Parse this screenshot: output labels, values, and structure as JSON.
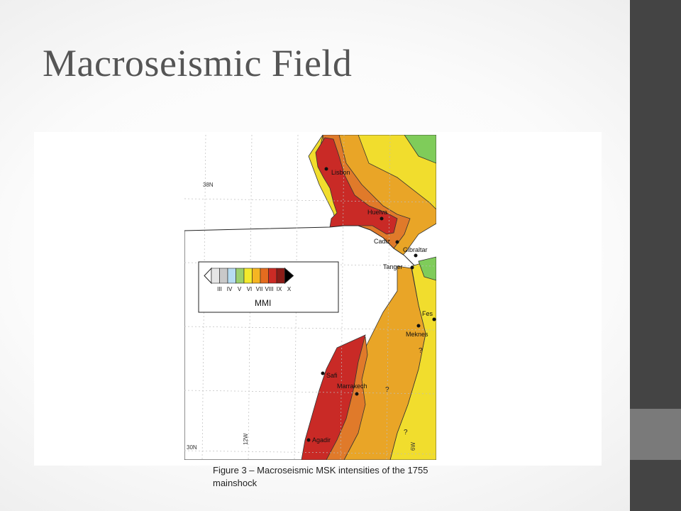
{
  "slide": {
    "title": "Macroseismic Field"
  },
  "figure": {
    "caption": "Figure 3 – Macroseismic MSK intensities of the 1755 mainshock",
    "latitude_labels": [
      "38N",
      "30N"
    ],
    "longitude_labels": [
      "12W",
      "6W"
    ],
    "cities": [
      "Lisbon",
      "Huelva",
      "Cadiz",
      "Gibraltar",
      "Tanger",
      "Fes",
      "Meknes",
      "Safi",
      "Marrakech",
      "Agadir"
    ],
    "uncertain_marks": [
      "?",
      "?",
      "?",
      "?"
    ],
    "legend": {
      "title": "MMI",
      "classes": [
        "III",
        "IV",
        "V",
        "VI",
        "VII",
        "VIII",
        "IX",
        "X"
      ],
      "colors": [
        "#e6e6e6",
        "#c9c9c9",
        "#b7dcf0",
        "#9ccf6d",
        "#f3ea2d",
        "#f6b522",
        "#e46c1f",
        "#cc2b25",
        "#8b1d18",
        "#000000"
      ]
    },
    "zone_colors": {
      "intensity_IX": "#c92a26",
      "intensity_VIII": "#e07a2a",
      "intensity_VII": "#e9a527",
      "intensity_VI": "#f1dd2d",
      "intensity_V": "#7fcc5a"
    }
  }
}
